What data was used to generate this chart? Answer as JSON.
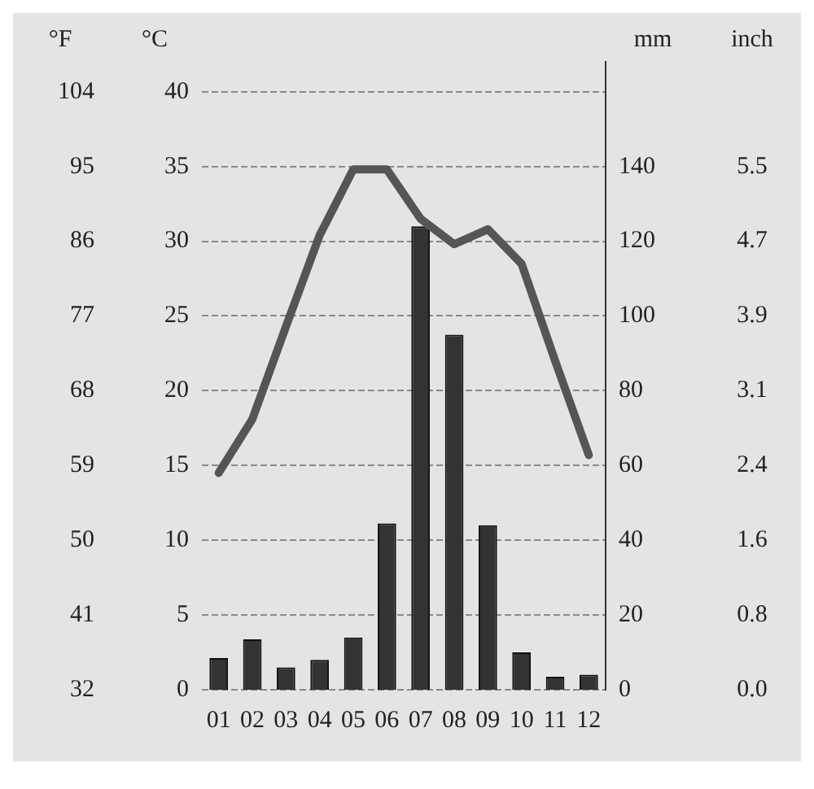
{
  "chart_data": {
    "type": "bar",
    "ylabel": "°C",
    "y2label": "mm",
    "y3label": "°F",
    "annotations": [
      "inch",
      "0.0",
      "0.8",
      "1.6",
      "2.4",
      "3.1",
      "3.9",
      "4.7",
      "5.5"
    ],
    "categories": [
      "01",
      "02",
      "03",
      "04",
      "05",
      "06",
      "07",
      "08",
      "09",
      "10",
      "11",
      "12"
    ],
    "series": [
      {
        "axis": "y2",
        "color": "#333333",
        "values": [
          8.5,
          13.5,
          6,
          8,
          14,
          44.5,
          124,
          95,
          44,
          10,
          3.5,
          4
        ]
      },
      {
        "type": "line",
        "axis": "y",
        "color": "#555555",
        "values": [
          14.5,
          18.1,
          24.3,
          30.4,
          34.8,
          34.8,
          31.5,
          29.8,
          30.8,
          28.5,
          22,
          15.7
        ]
      }
    ],
    "ylim": [
      0,
      42
    ],
    "yticks": [
      0,
      5,
      10,
      15,
      20,
      25,
      30,
      35,
      40
    ],
    "y2lim": [
      0,
      168
    ],
    "y2ticks": [
      0,
      20,
      40,
      60,
      80,
      100,
      120,
      140
    ],
    "y3lim": [
      32,
      107.6
    ],
    "y3ticks": [
      32,
      41,
      50,
      59,
      68,
      77,
      86,
      95,
      104
    ],
    "grid": "y",
    "line_style": "solid",
    "marker": "none",
    "legend": false
  }
}
